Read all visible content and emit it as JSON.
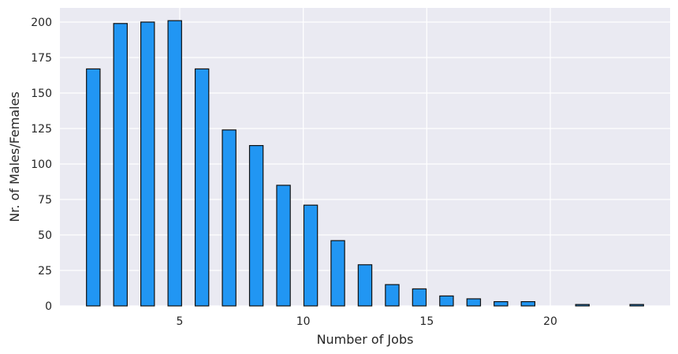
{
  "chart_data": {
    "type": "bar",
    "title": "",
    "xlabel": "Number of Jobs",
    "ylabel": "Nr. of Males/Females",
    "xlim": [
      0.15,
      24.85
    ],
    "ylim": [
      0,
      210
    ],
    "xticks": [
      5,
      10,
      15,
      20
    ],
    "yticks": [
      0,
      25,
      50,
      75,
      100,
      125,
      150,
      175,
      200
    ],
    "grid": true,
    "bar_width": 0.55,
    "series": [
      {
        "x": [
          1.5,
          2.6,
          3.7,
          4.8,
          5.9,
          7.0,
          8.1,
          9.2,
          10.3,
          11.4,
          12.5,
          13.6,
          14.7,
          15.8,
          16.9,
          18.0,
          19.1,
          20.2,
          21.3,
          22.4,
          23.5
        ],
        "values": [
          167,
          199,
          200,
          201,
          167,
          124,
          113,
          85,
          71,
          46,
          29,
          15,
          12,
          7,
          5,
          3,
          3,
          0,
          1,
          0,
          1
        ]
      }
    ],
    "colors": {
      "bar_fill": "#2196f3",
      "bar_edge": "#111111",
      "plot_bg": "#eaeaf2",
      "grid": "#ffffff"
    }
  }
}
